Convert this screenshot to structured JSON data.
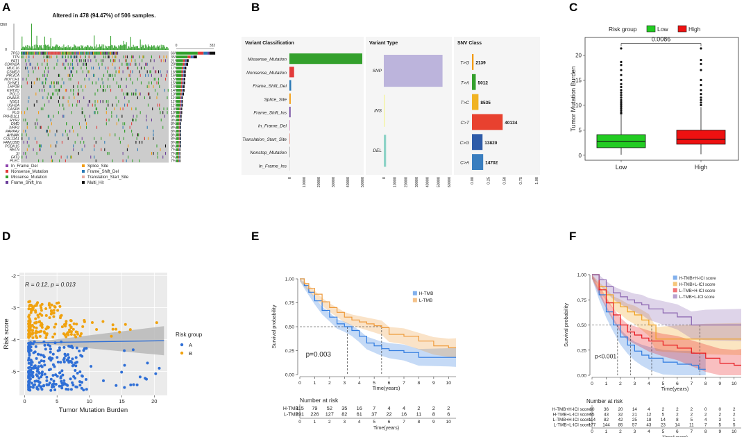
{
  "panels": {
    "A": "A",
    "B": "B",
    "C": "C",
    "D": "D",
    "E": "E",
    "F": "F"
  },
  "chart_data": [
    {
      "id": "A",
      "type": "heatmap",
      "title": "Altered in 478 (94.47%) of 506 samples.",
      "top_axis_max": "2360",
      "top_axis_min": "0",
      "side_axis": [
        "0",
        "332"
      ],
      "genes": [
        "TP53",
        "TTN",
        "FAT1",
        "CDKN2A",
        "MUC16",
        "CSMD3",
        "PIK3CA",
        "NOTCH1",
        "SYNE1",
        "LRP1B",
        "KMT2D",
        "PCLO",
        "DNAH5",
        "NSD1",
        "USH2A",
        "CASP8",
        "FLG",
        "PKHD1L1",
        "RYR2",
        "DMD",
        "XIRP2",
        "PAPPA2",
        "AHNAK",
        "COL11A1",
        "FAM135B",
        "PCDH15",
        "RELN",
        "SI",
        "FAT3",
        "PLEC"
      ],
      "percents": [
        66,
        35,
        21,
        20,
        17,
        16,
        16,
        15,
        15,
        14,
        14,
        13,
        11,
        11,
        11,
        10,
        10,
        9,
        9,
        8,
        8,
        8,
        8,
        8,
        8,
        8,
        7,
        7,
        7,
        7
      ],
      "legend": [
        {
          "label": "In_Frame_Del",
          "color": "#8e44ad"
        },
        {
          "label": "Splice_Site",
          "color": "#f39c12"
        },
        {
          "label": "Nonsense_Mutation",
          "color": "#e23b3b"
        },
        {
          "label": "Frame_Shift_Del",
          "color": "#2a79b5"
        },
        {
          "label": "Missense_Mutation",
          "color": "#33a02c"
        },
        {
          "label": "Translation_Start_Site",
          "color": "#e5a9a0"
        },
        {
          "label": "Frame_Shift_Ins",
          "color": "#6a3d9a"
        },
        {
          "label": "Multi_Hit",
          "color": "#111111"
        }
      ]
    },
    {
      "id": "B1",
      "type": "bar",
      "title": "Variant Classification",
      "categories": [
        "Missense_Mutation",
        "Nonsense_Mutation",
        "Frame_Shift_Del",
        "Splice_Site",
        "Frame_Shift_Ins",
        "In_Frame_Del",
        "Translation_Start_Site",
        "Nonstop_Mutation",
        "In_Frame_Ins"
      ],
      "values": [
        50500,
        3200,
        1200,
        900,
        800,
        250,
        120,
        60,
        40
      ],
      "colors": [
        "#33a02c",
        "#e23b3b",
        "#2a79b5",
        "#f39c12",
        "#6a3d9a",
        "#d9a3c9",
        "#e5a9a0",
        "#bbbbbb",
        "#dddddd"
      ],
      "xticks": [
        "0",
        "10000",
        "20000",
        "30000",
        "40000",
        "50000"
      ],
      "xlim": [
        0,
        50000
      ]
    },
    {
      "id": "B2",
      "type": "bar",
      "title": "Variant Type",
      "categories": [
        "SNP",
        "INS",
        "DEL"
      ],
      "values": [
        54000,
        300,
        2100
      ],
      "colors": [
        "#bcb4dc",
        "#f4f4a6",
        "#8dd3c7"
      ],
      "xticks": [
        "0",
        "10000",
        "20000",
        "30000",
        "40000",
        "50000",
        "60000"
      ],
      "xlim": [
        0,
        60000
      ]
    },
    {
      "id": "B3",
      "type": "bar",
      "title": "SNV Class",
      "categories": [
        "T>G",
        "T>A",
        "T>C",
        "C>T",
        "C>G",
        "C>A"
      ],
      "values": [
        2139,
        5012,
        8535,
        40134,
        13820,
        14702
      ],
      "fractions": [
        0.025,
        0.059,
        0.101,
        0.476,
        0.164,
        0.174
      ],
      "colors": [
        "#f39c12",
        "#33a02c",
        "#f0b323",
        "#e8412f",
        "#2f5ca8",
        "#3a7ebf"
      ],
      "xticks": [
        "0.00",
        "0.25",
        "0.50",
        "0.75",
        "1.00"
      ],
      "xlim": [
        0,
        1
      ]
    },
    {
      "id": "C",
      "type": "box",
      "legend_title": "Risk group",
      "groups": [
        "Low",
        "High"
      ],
      "colors": [
        "#22cc22",
        "#ee1111"
      ],
      "ylabel": "Tumor Mutation Burden",
      "yticks": [
        0,
        5,
        10,
        15,
        20
      ],
      "ylim": [
        -1,
        23.5
      ],
      "pvalue": "0.0086",
      "stats": [
        {
          "q1": 1.5,
          "median": 2.8,
          "q3": 4.1,
          "lo": 0.1,
          "hi": 8.0,
          "outliers": [
            8.3,
            8.6,
            9.0,
            9.4,
            9.8,
            10.2,
            10.6,
            11.0,
            11.5,
            12.0,
            12.5,
            13.0,
            13.6,
            14.2,
            15.0,
            16.0,
            17.0,
            18.0,
            18.6,
            21.3
          ]
        },
        {
          "q1": 2.2,
          "median": 3.2,
          "q3": 5.0,
          "lo": 0.2,
          "hi": 9.6,
          "outliers": [
            10.0,
            10.5,
            11.0,
            11.5,
            12.2,
            13.0,
            14.0,
            15.0,
            17.0,
            18.2,
            19.0,
            21.3
          ]
        }
      ]
    },
    {
      "id": "D",
      "type": "scatter",
      "annotation": "R = 0.12, p = 0.013",
      "xlabel": "Tumor Mutation Burden",
      "ylabel": "Risk score",
      "xticks": [
        0,
        5,
        10,
        15,
        20
      ],
      "yticks": [
        -2,
        -3,
        -4,
        -5
      ],
      "xlim": [
        -0.8,
        22
      ],
      "ylim": [
        -5.75,
        -1.9
      ],
      "legend_title": "Risk group",
      "series": [
        {
          "name": "A",
          "color": "#2f6fd6"
        },
        {
          "name": "B",
          "color": "#f0a20f"
        }
      ],
      "regression": {
        "slope": 0.003,
        "intercept": -4.1
      },
      "seed": 7
    },
    {
      "id": "E",
      "type": "line",
      "ylabel": "Survival probability",
      "xlabel": "Time(years)",
      "xticks": [
        0,
        1,
        2,
        3,
        4,
        5,
        6,
        7,
        8,
        9,
        10
      ],
      "yticks": [
        "0.00",
        "0.25",
        "0.50",
        "0.75",
        "1.00"
      ],
      "pvalue": "p=0.003",
      "series": [
        {
          "name": "H-TMB",
          "color": "#2f7be0",
          "x": [
            0,
            0.3,
            0.6,
            1,
            1.5,
            2,
            2.5,
            3,
            3.5,
            4,
            4.5,
            5,
            5.5,
            6,
            7,
            8,
            9,
            10,
            10.5
          ],
          "y": [
            1,
            0.93,
            0.86,
            0.77,
            0.67,
            0.6,
            0.53,
            0.5,
            0.46,
            0.4,
            0.33,
            0.3,
            0.27,
            0.25,
            0.23,
            0.18,
            0.18,
            0.18,
            0.18
          ]
        },
        {
          "name": "L-TMB",
          "color": "#ee9a3a",
          "x": [
            0,
            0.3,
            0.6,
            1,
            1.5,
            2,
            2.5,
            3,
            3.5,
            4,
            4.5,
            5,
            5.5,
            6,
            7,
            8,
            9,
            10,
            10.5
          ],
          "y": [
            1,
            0.95,
            0.9,
            0.84,
            0.76,
            0.7,
            0.65,
            0.6,
            0.57,
            0.55,
            0.53,
            0.51,
            0.49,
            0.42,
            0.4,
            0.35,
            0.3,
            0.28,
            0.28
          ]
        }
      ],
      "medians": [
        3.2,
        5.5
      ],
      "risk_title": "Number at risk",
      "risk_table": [
        {
          "name": "H-TMB",
          "color": "#2f7be0",
          "values": [
            "115",
            "79",
            "52",
            "35",
            "16",
            "7",
            "4",
            "4",
            "2",
            "2",
            "2"
          ]
        },
        {
          "name": "L-TMB",
          "color": "#ee9a3a",
          "values": [
            "291",
            "226",
            "127",
            "82",
            "61",
            "37",
            "22",
            "16",
            "11",
            "8",
            "6"
          ]
        }
      ]
    },
    {
      "id": "F",
      "type": "line",
      "ylabel": "Survival probability",
      "xlabel": "Time(years)",
      "xticks": [
        0,
        1,
        2,
        3,
        4,
        5,
        6,
        7,
        8,
        9,
        10
      ],
      "yticks": [
        "0.00",
        "0.25",
        "0.50",
        "0.75",
        "1.00"
      ],
      "pvalue": "p<0.001",
      "series": [
        {
          "name": "H-TMB+H-ICI  score",
          "color": "#2f7be0",
          "x": [
            0,
            0.5,
            1,
            1.5,
            2,
            2.5,
            3,
            3.5,
            4,
            5,
            6,
            7,
            7.5,
            8
          ],
          "y": [
            1,
            0.8,
            0.63,
            0.5,
            0.38,
            0.3,
            0.24,
            0.2,
            0.17,
            0.13,
            0.11,
            0.1,
            0.06,
            0.06
          ]
        },
        {
          "name": "H-TMB+L-ICI  score",
          "color": "#f0a020",
          "x": [
            0,
            0.5,
            1,
            1.5,
            2,
            2.5,
            3,
            3.5,
            4,
            4.5,
            5,
            6,
            7,
            8,
            10.5
          ],
          "y": [
            1,
            0.88,
            0.8,
            0.72,
            0.68,
            0.63,
            0.6,
            0.55,
            0.5,
            0.36,
            0.36,
            0.36,
            0.36,
            0.36,
            0.36
          ]
        },
        {
          "name": "L-TMB+H-ICI  score",
          "color": "#e8181e",
          "x": [
            0,
            0.5,
            1,
            1.5,
            2,
            2.5,
            3,
            3.5,
            4,
            5,
            6,
            7,
            8,
            9,
            10,
            10.5
          ],
          "y": [
            1,
            0.85,
            0.72,
            0.6,
            0.5,
            0.43,
            0.4,
            0.37,
            0.34,
            0.3,
            0.27,
            0.22,
            0.17,
            0.12,
            0.1,
            0.1
          ]
        },
        {
          "name": "L-TMB+L-ICI  score",
          "color": "#8a64b0",
          "x": [
            0,
            0.5,
            1,
            1.5,
            2,
            2.5,
            3,
            3.5,
            4,
            5,
            6,
            7,
            7.5,
            8,
            10.5
          ],
          "y": [
            1,
            0.95,
            0.88,
            0.82,
            0.78,
            0.75,
            0.72,
            0.7,
            0.66,
            0.62,
            0.58,
            0.5,
            0.5,
            0.5,
            0.5
          ]
        }
      ],
      "medians": [
        1.8,
        2.7,
        4.2,
        7.6
      ],
      "risk_title": "Number at risk",
      "risk_table": [
        {
          "name": "H-TMB+H-ICI  score",
          "color": "#2f7be0",
          "values": [
            "60",
            "36",
            "20",
            "14",
            "4",
            "2",
            "2",
            "2",
            "0",
            "0",
            "2"
          ]
        },
        {
          "name": "H-TMB+L-ICI  score",
          "color": "#f0a020",
          "values": [
            "55",
            "43",
            "32",
            "21",
            "12",
            "5",
            "2",
            "2",
            "2",
            "2",
            "2"
          ]
        },
        {
          "name": "L-TMB+H-ICI  score",
          "color": "#e8181e",
          "values": [
            "114",
            "82",
            "42",
            "25",
            "18",
            "14",
            "8",
            "5",
            "4",
            "3",
            "1"
          ]
        },
        {
          "name": "L-TMB+L-ICI  score",
          "color": "#8a64b0",
          "values": [
            "177",
            "144",
            "85",
            "57",
            "43",
            "23",
            "14",
            "11",
            "7",
            "5",
            "5"
          ]
        }
      ]
    }
  ]
}
